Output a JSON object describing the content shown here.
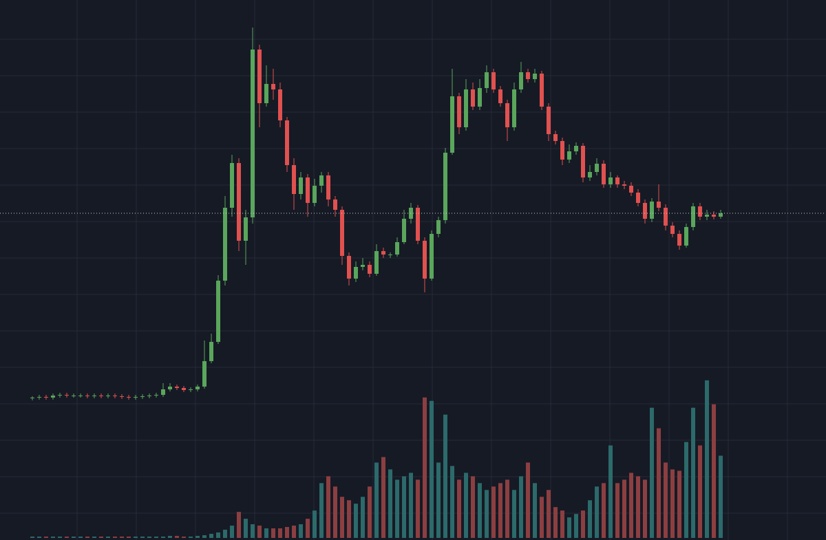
{
  "chart_data": {
    "type": "candlestick",
    "open": [
      206,
      207,
      208,
      207,
      210,
      211,
      210,
      210,
      210,
      209,
      210,
      209,
      210,
      209,
      208,
      207,
      208,
      209,
      210,
      211,
      219,
      223,
      221,
      218,
      219,
      223,
      260,
      288,
      377,
      483,
      548,
      435,
      469,
      713,
      635,
      663,
      655,
      610,
      545,
      503,
      527,
      490,
      515,
      530,
      495,
      480,
      413,
      380,
      397,
      400,
      387,
      420,
      415,
      415,
      433,
      467,
      483,
      435,
      380,
      445,
      465,
      563,
      645,
      600,
      655,
      630,
      657,
      680,
      655,
      635,
      600,
      655,
      680,
      670,
      678,
      630,
      590,
      580,
      553,
      565,
      573,
      527,
      535,
      547,
      517,
      527,
      517,
      515,
      505,
      490,
      467,
      492,
      483,
      457,
      445,
      428,
      455,
      485,
      470,
      473,
      470
    ],
    "high": [
      209,
      211,
      211,
      213,
      214,
      214,
      213,
      213,
      213,
      213,
      213,
      213,
      213,
      212,
      211,
      211,
      212,
      213,
      214,
      228,
      228,
      226,
      224,
      222,
      226,
      290,
      300,
      385,
      500,
      560,
      555,
      480,
      745,
      720,
      690,
      685,
      665,
      615,
      555,
      535,
      532,
      525,
      535,
      535,
      500,
      485,
      418,
      405,
      410,
      405,
      430,
      425,
      418,
      440,
      480,
      490,
      487,
      440,
      450,
      470,
      570,
      685,
      650,
      670,
      665,
      670,
      690,
      685,
      660,
      640,
      665,
      695,
      685,
      685,
      682,
      635,
      595,
      585,
      575,
      578,
      577,
      545,
      555,
      552,
      535,
      530,
      522,
      520,
      510,
      495,
      497,
      517,
      488,
      462,
      450,
      460,
      490,
      490,
      480,
      478,
      480
    ],
    "low": [
      203,
      204,
      204,
      204,
      207,
      207,
      207,
      207,
      206,
      206,
      206,
      206,
      206,
      205,
      204,
      204,
      205,
      206,
      207,
      208,
      216,
      218,
      215,
      215,
      216,
      220,
      257,
      285,
      370,
      470,
      420,
      400,
      460,
      600,
      630,
      640,
      600,
      535,
      480,
      495,
      470,
      485,
      505,
      485,
      470,
      400,
      370,
      375,
      392,
      382,
      384,
      410,
      410,
      412,
      430,
      460,
      430,
      360,
      377,
      440,
      460,
      560,
      590,
      595,
      625,
      625,
      650,
      650,
      630,
      580,
      595,
      650,
      665,
      665,
      625,
      580,
      575,
      545,
      548,
      560,
      520,
      522,
      530,
      512,
      512,
      512,
      510,
      500,
      485,
      460,
      462,
      478,
      450,
      440,
      422,
      425,
      450,
      465,
      465,
      466,
      467
    ],
    "close": [
      207,
      208,
      207,
      210,
      211,
      210,
      210,
      210,
      209,
      210,
      209,
      210,
      209,
      208,
      207,
      208,
      209,
      210,
      211,
      219,
      223,
      221,
      218,
      219,
      223,
      260,
      288,
      377,
      483,
      548,
      435,
      469,
      713,
      635,
      663,
      655,
      610,
      545,
      503,
      527,
      490,
      515,
      530,
      495,
      480,
      413,
      380,
      397,
      400,
      387,
      420,
      415,
      415,
      433,
      467,
      483,
      435,
      380,
      445,
      465,
      563,
      645,
      600,
      655,
      630,
      657,
      680,
      655,
      635,
      600,
      655,
      680,
      670,
      678,
      630,
      590,
      580,
      553,
      565,
      573,
      527,
      535,
      547,
      517,
      527,
      517,
      515,
      505,
      490,
      467,
      492,
      483,
      457,
      445,
      428,
      455,
      485,
      470,
      473,
      470,
      475
    ],
    "volume": [
      2,
      2,
      2,
      2,
      2,
      2,
      2,
      2,
      2,
      2,
      2,
      2,
      2,
      2,
      2,
      2,
      2,
      2,
      2,
      2,
      3,
      3,
      2,
      2,
      3,
      4,
      6,
      8,
      12,
      18,
      38,
      28,
      20,
      18,
      14,
      14,
      14,
      16,
      18,
      20,
      28,
      40,
      80,
      90,
      75,
      60,
      55,
      50,
      60,
      75,
      110,
      118,
      100,
      85,
      90,
      95,
      85,
      205,
      200,
      110,
      180,
      105,
      85,
      95,
      90,
      80,
      70,
      75,
      80,
      85,
      70,
      90,
      110,
      80,
      60,
      70,
      45,
      40,
      30,
      35,
      40,
      55,
      75,
      80,
      135,
      80,
      85,
      95,
      90,
      85,
      190,
      160,
      110,
      100,
      98,
      140,
      190,
      135,
      230,
      195,
      120
    ],
    "ylim": [
      0,
      785
    ],
    "volume_ylim": [
      0,
      785
    ],
    "up_color": "#5aa65c",
    "down_color": "#e0514f",
    "volume_up_color": "#2c6a6b",
    "volume_down_color": "#8c3f41",
    "grid": true
  }
}
